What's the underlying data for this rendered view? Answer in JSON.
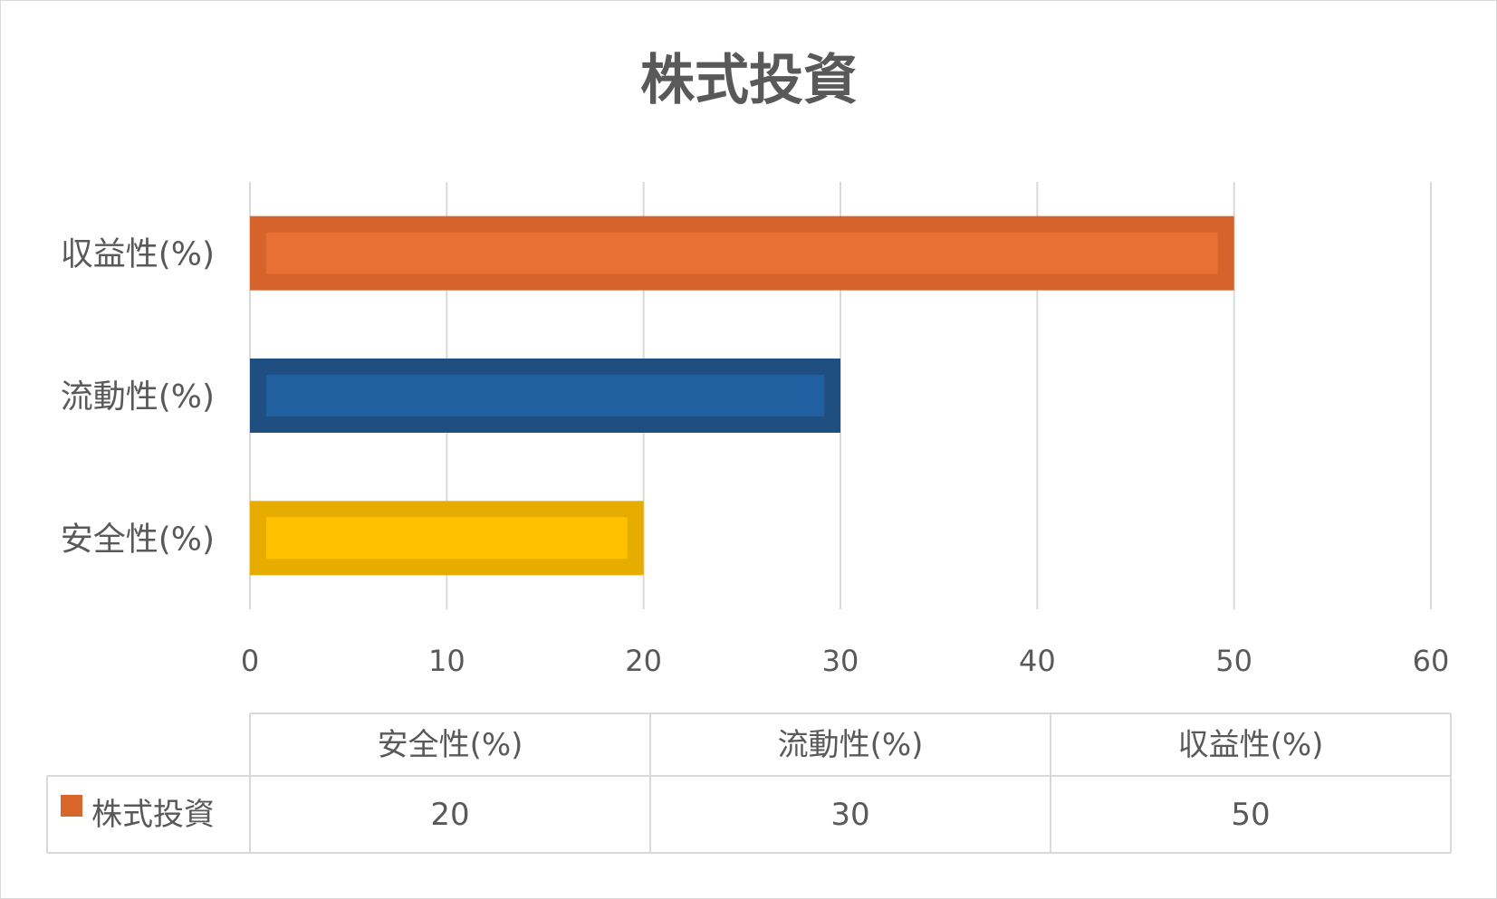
{
  "chart_data": {
    "type": "bar",
    "orientation": "horizontal",
    "title": "株式投資",
    "categories": [
      "安全性(%)",
      "流動性(%)",
      "収益性(%)"
    ],
    "series": [
      {
        "name": "株式投資",
        "values": [
          20,
          30,
          50
        ],
        "color": "#d9662b"
      }
    ],
    "bar_colors": [
      {
        "fill": "#ffc000",
        "border": "#e6ac00"
      },
      {
        "fill": "#2060a0",
        "border": "#1f4e80"
      },
      {
        "fill": "#e87034",
        "border": "#d5632b"
      }
    ],
    "xlim": [
      0,
      60
    ],
    "x_ticks": [
      "0",
      "10",
      "20",
      "30",
      "40",
      "50",
      "60"
    ],
    "xlabel": "",
    "ylabel": "",
    "grid": "vertical",
    "legend": "data-table",
    "data_table": {
      "headers": [
        "安全性(%)",
        "流動性(%)",
        "収益性(%)"
      ],
      "row_label": "株式投資",
      "row_values": [
        "20",
        "30",
        "50"
      ]
    },
    "colors": {
      "text": "#595959",
      "grid": "#d9d9d9",
      "legend_key": "#d9662b"
    }
  }
}
